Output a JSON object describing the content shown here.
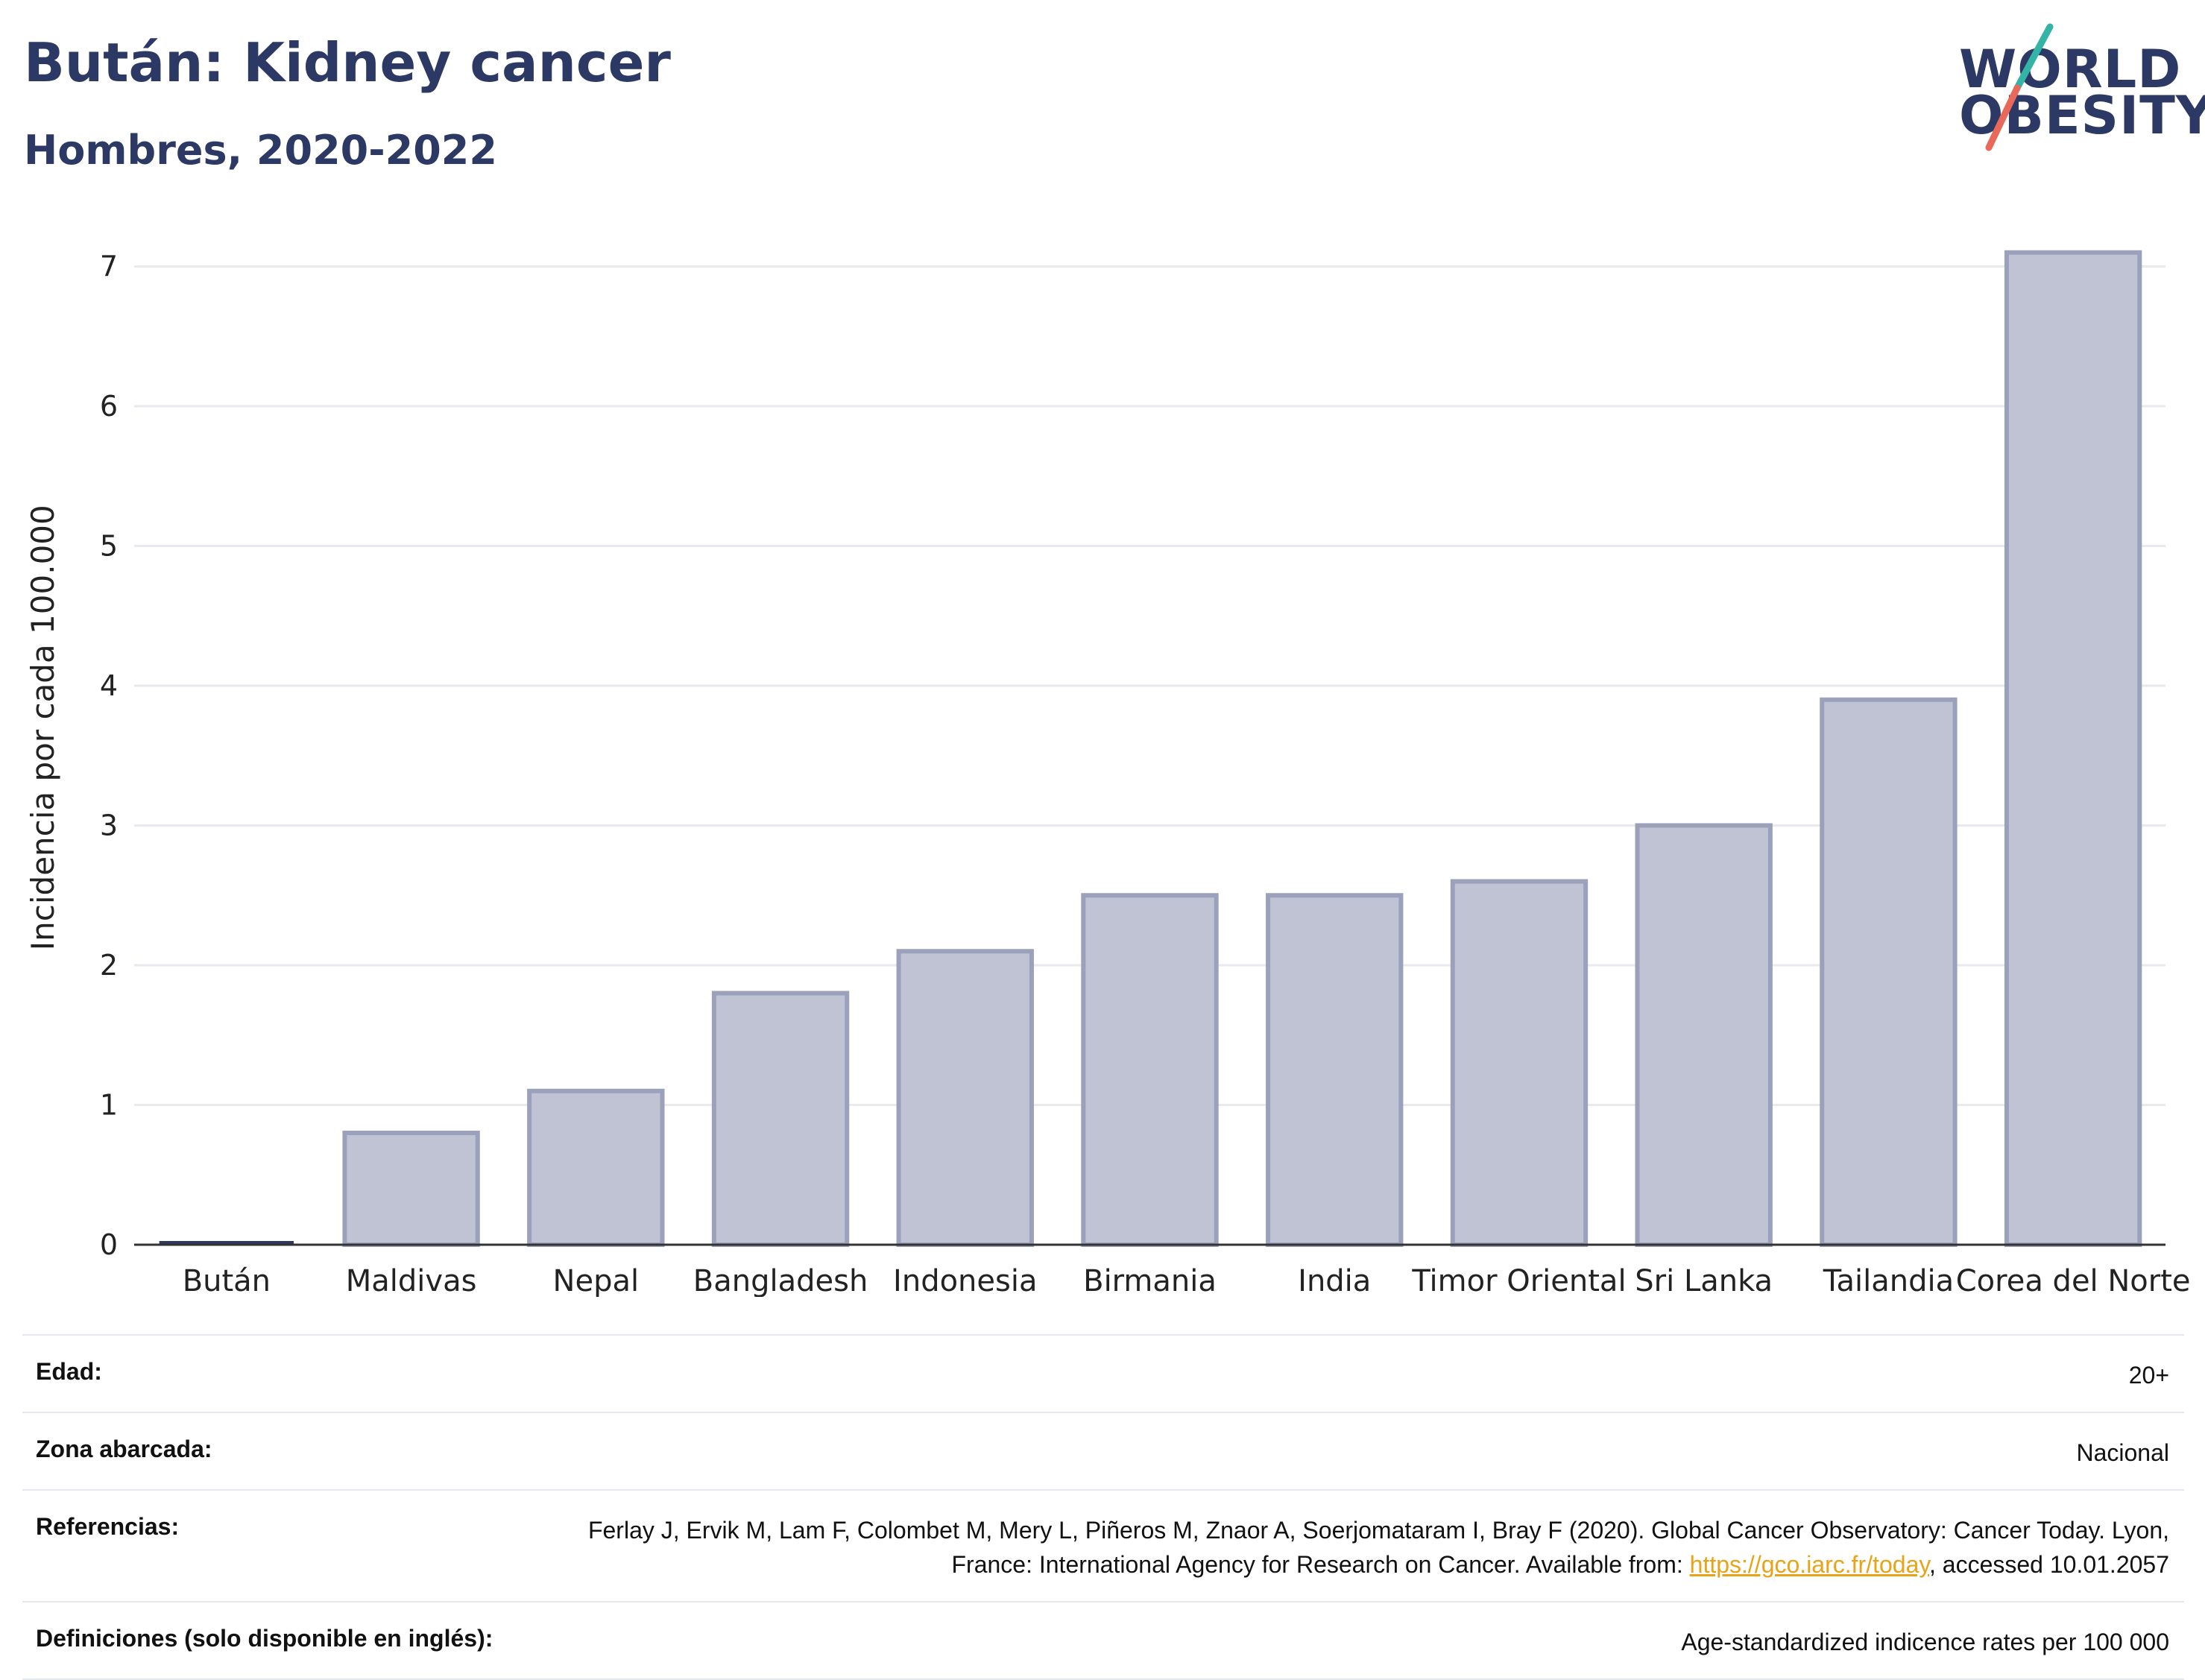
{
  "header": {
    "title": "Bután: Kidney cancer",
    "subtitle": "Hombres, 2020-2022"
  },
  "logo": {
    "line1": "WORLD",
    "line2": "OBESITY",
    "colors": {
      "text": "#2b3964",
      "slash_top": "#33b4a6",
      "slash_bottom": "#e8685a"
    }
  },
  "chart_data": {
    "type": "bar",
    "title": "Bután: Kidney cancer",
    "subtitle": "Hombres, 2020-2022",
    "xlabel": "",
    "ylabel": "Incidencia por cada 100.000",
    "ylim": [
      0,
      7.4
    ],
    "yticks": [
      0,
      1,
      2,
      3,
      4,
      5,
      6,
      7
    ],
    "grid": true,
    "categories": [
      "Bután",
      "Maldivas",
      "Nepal",
      "Bangladesh",
      "Indonesia",
      "Birmania",
      "India",
      "Timor Oriental",
      "Sri Lanka",
      "Tailandia",
      "Corea del Norte"
    ],
    "values": [
      0.02,
      0.8,
      1.1,
      1.8,
      2.1,
      2.5,
      2.5,
      2.6,
      3.0,
      3.9,
      7.1
    ],
    "highlight": "Bután",
    "colors": {
      "bar": "#bfc3d3",
      "bar_border": "#9ba1ba",
      "highlight": "#2b3964",
      "grid": "#e9eaef",
      "axis": "#333333"
    }
  },
  "info": {
    "rows": [
      {
        "label": "Edad:",
        "value": "20+"
      },
      {
        "label": "Zona abarcada:",
        "value": "Nacional"
      },
      {
        "label": "Referencias:",
        "value_pre": "Ferlay J, Ervik M, Lam F, Colombet M, Mery L, Piñeros M, Znaor A, Soerjomataram I, Bray F (2020). Global Cancer Observatory: Cancer Today. Lyon, France: International Agency for Research on Cancer. Available from: ",
        "link": "https://gco.iarc.fr/today",
        "value_post": ", accessed 10.01.2057"
      },
      {
        "label": "Definiciones (solo disponible en inglés):",
        "value": "Age-standardized indicence rates per 100 000"
      }
    ]
  }
}
